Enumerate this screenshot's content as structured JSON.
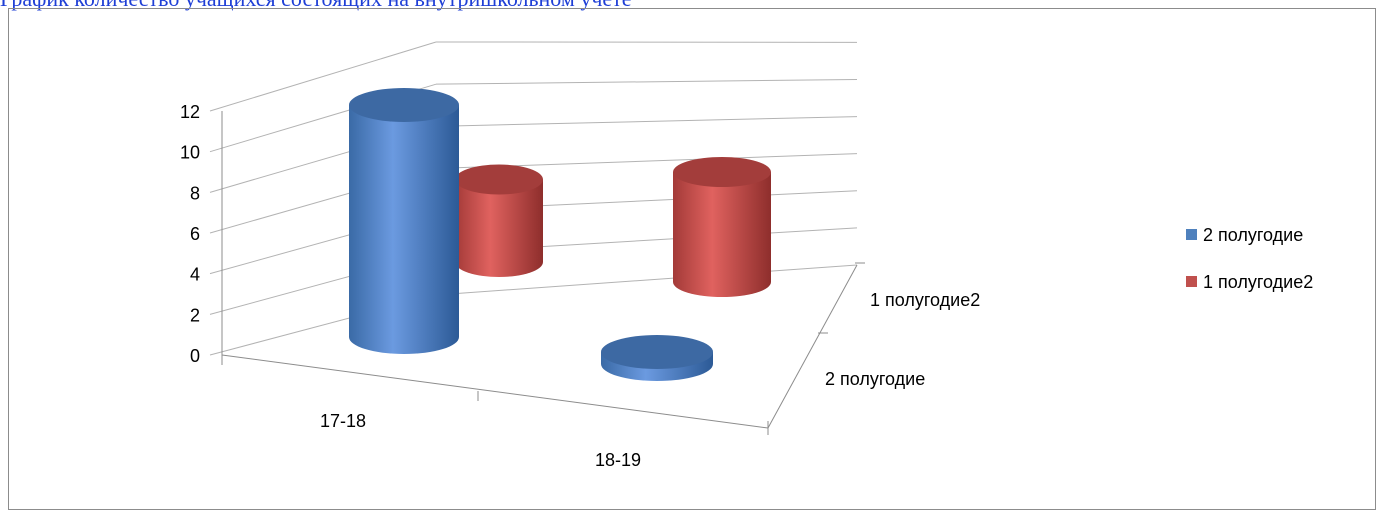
{
  "title": "График количество учащихся состоящих на внутришкольном учете",
  "chart_data": {
    "type": "bar",
    "subtype": "3d-cylinder",
    "categories": [
      "17-18",
      "18-19"
    ],
    "depth_categories": [
      "2 полугодие",
      "1 полугодие2"
    ],
    "series": [
      {
        "name": "2 полугодие",
        "values": [
          12,
          0
        ],
        "color": "#4f81bd"
      },
      {
        "name": "1 полугодие2",
        "values": [
          6,
          8
        ],
        "color": "#c0504d"
      }
    ],
    "y_ticks": [
      "0",
      "2",
      "4",
      "6",
      "8",
      "10",
      "12"
    ],
    "ylim": [
      0,
      12
    ],
    "legend_position": "right",
    "grid": true
  }
}
